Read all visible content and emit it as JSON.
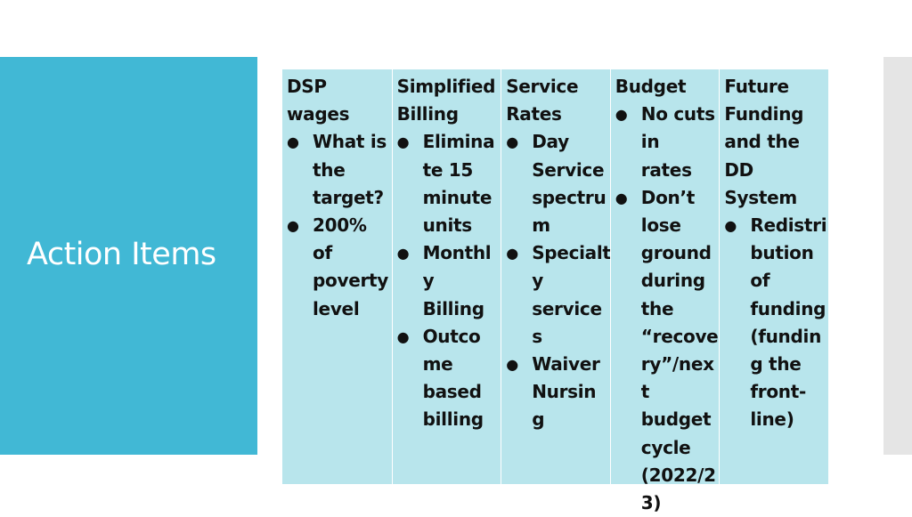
{
  "slide": {
    "title": "Action Items"
  },
  "table": {
    "columns": [
      {
        "header": "DSP\nwages",
        "bullets": [
          "What is\nthe\ntarget?",
          "200% of\npoverty\nlevel"
        ]
      },
      {
        "header": "Simplified\nBilling",
        "bullets": [
          "Elimina\nte 15\nminute\nunits",
          "Monthl\ny\nBilling",
          "Outco\nme\nbased\nbilling"
        ]
      },
      {
        "header": "Service\nRates",
        "bullets": [
          "Day\nService\nspectru\nm",
          "Specialt\ny\nservice\ns",
          "Waiver\nNursin\ng"
        ]
      },
      {
        "header": "Budget",
        "bullets": [
          "No cuts\nin rates",
          "Don’t\nlose\nground\nduring\nthe\n“recove\nry”/nex\nt\nbudget\ncycle\n(2022/2\n3)"
        ]
      },
      {
        "header": "Future\nFunding\nand the\nDD\nSystem",
        "bullets": [
          "Redistri\nbution\nof\nfunding\n(fundin\ng the\nfront-\nline)"
        ]
      }
    ]
  },
  "icons": {
    "bullet": "bullet-dot-icon"
  },
  "colors": {
    "title_panel": "#41b8d5",
    "table_fill": "#b8e5ec",
    "side_bar": "#e5e5e5"
  }
}
